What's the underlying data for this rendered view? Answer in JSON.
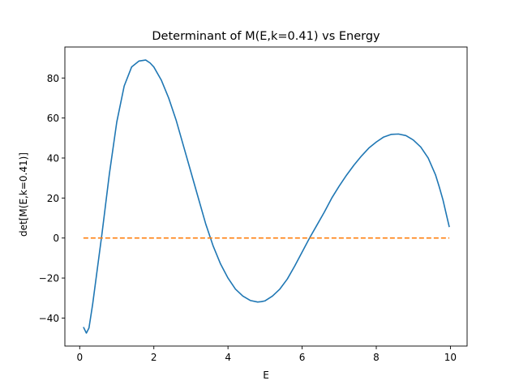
{
  "chart_data": {
    "type": "line",
    "title": "Determinant of M(E,k=0.41) vs Energy",
    "xlabel": "E",
    "ylabel": "det[M(E,k=0.41)]",
    "xlim": [
      -0.4,
      10.45
    ],
    "ylim": [
      -54,
      95.5
    ],
    "xticks": [
      0,
      2,
      4,
      6,
      8,
      10
    ],
    "yticks": [
      -40,
      -20,
      0,
      20,
      40,
      60,
      80
    ],
    "grid": false,
    "legend": "none",
    "series": [
      {
        "color": "#1f77b4",
        "style": "solid",
        "x": [
          0.1,
          0.18,
          0.25,
          0.35,
          0.5,
          0.6,
          0.8,
          1.0,
          1.2,
          1.4,
          1.6,
          1.78,
          1.9,
          2.0,
          2.2,
          2.4,
          2.6,
          2.8,
          3.0,
          3.2,
          3.4,
          3.6,
          3.8,
          4.0,
          4.2,
          4.4,
          4.6,
          4.8,
          4.9,
          5.0,
          5.2,
          5.4,
          5.6,
          5.8,
          6.0,
          6.2,
          6.4,
          6.6,
          6.8,
          7.0,
          7.2,
          7.4,
          7.6,
          7.8,
          8.0,
          8.2,
          8.4,
          8.6,
          8.8,
          9.0,
          9.2,
          9.4,
          9.6,
          9.7,
          9.8,
          9.9,
          9.97
        ],
        "y": [
          -44.5,
          -47.5,
          -45,
          -33,
          -12,
          2,
          32,
          58,
          76,
          85.5,
          88.5,
          89,
          87.5,
          85.5,
          79,
          70,
          59,
          46,
          33,
          20,
          7,
          -4,
          -13,
          -20,
          -25.5,
          -29,
          -31.2,
          -32,
          -31.8,
          -31.4,
          -29,
          -25.5,
          -20.5,
          -14,
          -7,
          0,
          6.5,
          13,
          20,
          26,
          31.5,
          36.5,
          41,
          45,
          48,
          50.5,
          51.8,
          52,
          51.2,
          49,
          45.5,
          40,
          31.5,
          25.5,
          19,
          11,
          5.5
        ]
      },
      {
        "color": "#ff7f0e",
        "style": "dashed",
        "x": [
          0.1,
          9.97
        ],
        "y": [
          0,
          0
        ]
      }
    ]
  }
}
